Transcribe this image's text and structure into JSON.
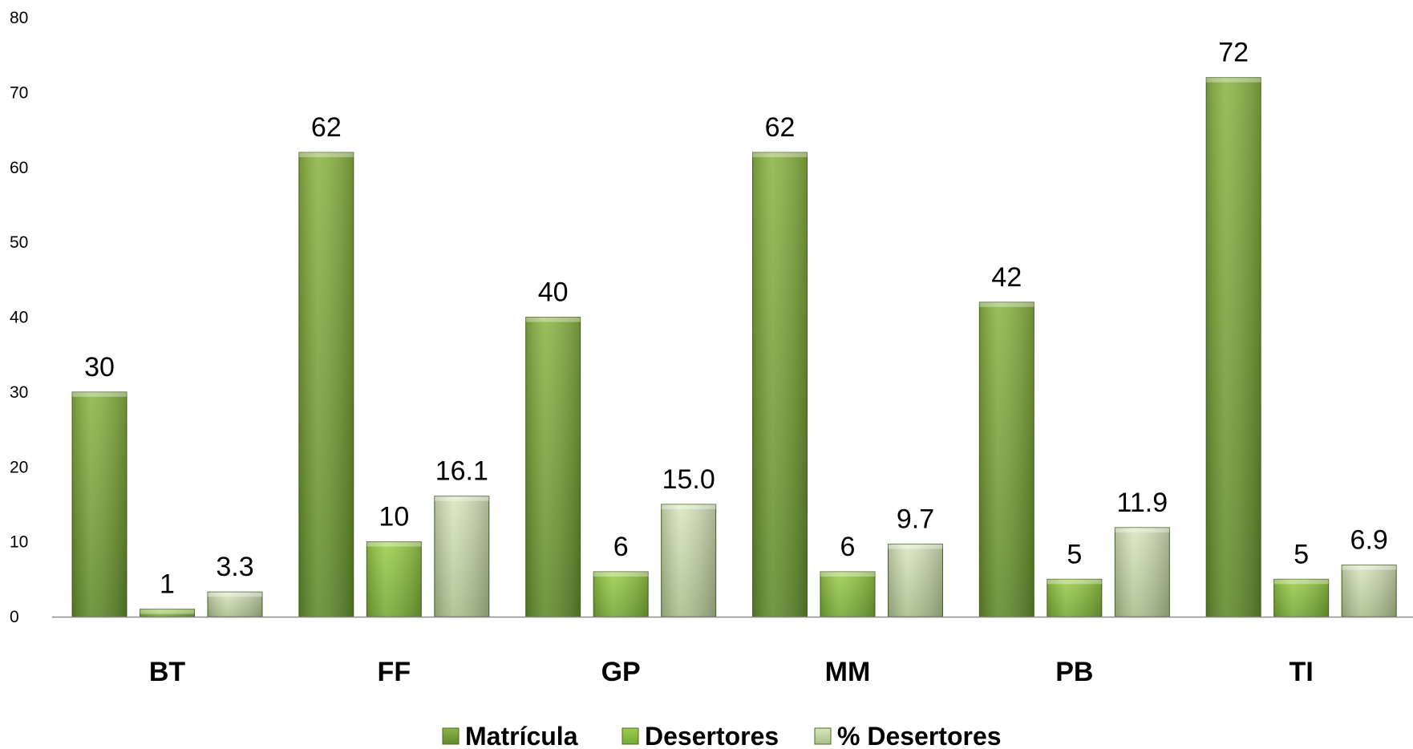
{
  "chart_data": {
    "type": "bar",
    "categories": [
      "BT",
      "FF",
      "GP",
      "MM",
      "PB",
      "TI"
    ],
    "series": [
      {
        "name": "Matrícula",
        "values": [
          30,
          62,
          40,
          62,
          42,
          72
        ],
        "labels": [
          "30",
          "62",
          "40",
          "62",
          "42",
          "72"
        ],
        "color": "#7aa53a"
      },
      {
        "name": "Desertores",
        "values": [
          1,
          10,
          6,
          6,
          5,
          5
        ],
        "labels": [
          "1",
          "10",
          "6",
          "6",
          "5",
          "5"
        ],
        "color": "#8cc63f"
      },
      {
        "name": "% Desertores",
        "values": [
          3.3,
          16.1,
          15.0,
          9.7,
          11.9,
          6.9
        ],
        "labels": [
          "3.3",
          "16.1",
          "15.0",
          "9.7",
          "11.9",
          "6.9"
        ],
        "color": "#c3d9a3"
      }
    ],
    "yticks": [
      "0",
      "10",
      "20",
      "30",
      "40",
      "50",
      "60",
      "70",
      "80"
    ],
    "ylim": [
      0,
      80
    ],
    "title": "",
    "xlabel": "",
    "ylabel": "",
    "grid": false,
    "legend_position": "bottom"
  }
}
